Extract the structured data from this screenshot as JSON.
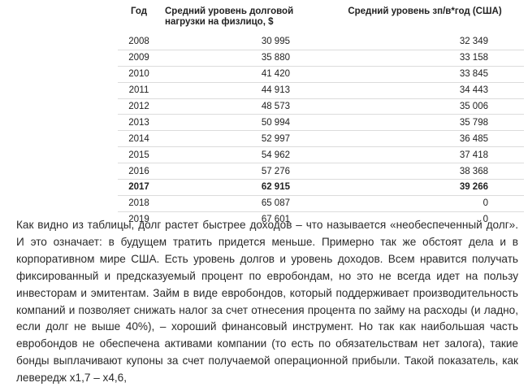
{
  "table": {
    "headers": {
      "year": "Год",
      "debt": "Средний уровень долговой нагрузки на физлицо, $",
      "wage": "Средний уровень зп/в*год (США)"
    },
    "rows": [
      {
        "year": "2008",
        "debt": "30 995",
        "wage": "32 349"
      },
      {
        "year": "2009",
        "debt": "35 880",
        "wage": "33 158"
      },
      {
        "year": "2010",
        "debt": "41 420",
        "wage": "33 845"
      },
      {
        "year": "2011",
        "debt": "44 913",
        "wage": "34 443"
      },
      {
        "year": "2012",
        "debt": "48 573",
        "wage": "35 006"
      },
      {
        "year": "2013",
        "debt": "50 994",
        "wage": "35 798"
      },
      {
        "year": "2014",
        "debt": "52 997",
        "wage": "36 485"
      },
      {
        "year": "2015",
        "debt": "54 962",
        "wage": "37 418"
      },
      {
        "year": "2016",
        "debt": "57 276",
        "wage": "38 368"
      },
      {
        "year": "2017",
        "debt": "62 915",
        "wage": "39 266"
      },
      {
        "year": "2018",
        "debt": "65 087",
        "wage": "0"
      },
      {
        "year": "2019",
        "debt": "67 601",
        "wage": "0"
      }
    ]
  },
  "paragraph": "Как видно из таблицы, долг растет быстрее доходов – что называется «необеспеченный долг». И это означает: в будущем тратить придется меньше. Примерно так же обстоят дела и в корпоративном мире США. Есть уровень долгов и уровень доходов. Всем нравится получать фиксированный и предсказуемый процент по евробондам, но это не всегда идет на пользу инвесторам и эмитентам. Займ в виде евробондов, который поддерживает производительность компаний и позволяет снижать налог за счет отнесения процента по займу на расходы (и ладно, если долг не выше 40%), – хороший финансовый инструмент. Но так как наибольшая часть евробондов не обеспечена активами компании (то есть по обязательствам нет залога), такие бонды выплачивают купоны за счет получаемой операционной прибыли. Такой показатель, как левередж х1,7 – х4,6,"
}
